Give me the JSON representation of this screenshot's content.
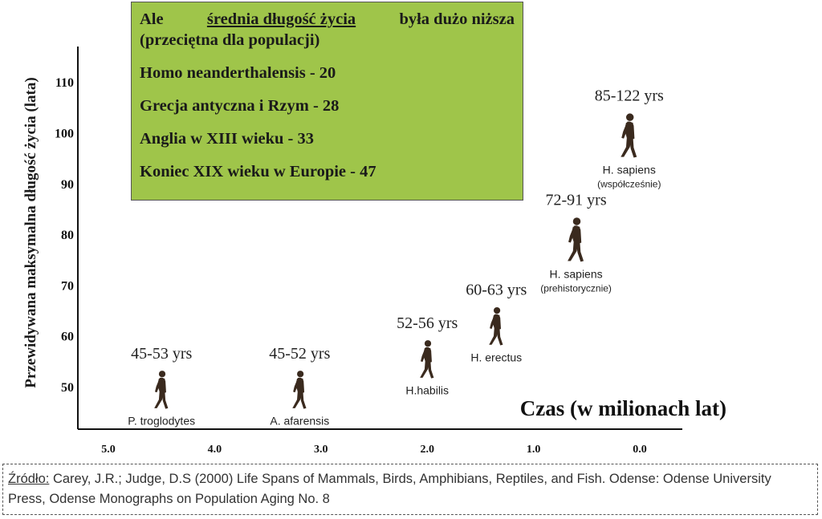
{
  "chart_data": {
    "type": "scatter",
    "ylabel": "Przewidywana maksymalna długość życia (lata)",
    "xlabel": "Czas (w milionach lat)",
    "x_ticks": [
      "5.0",
      "4.0",
      "3.0",
      "2.0",
      "1.0",
      "0.0"
    ],
    "y_ticks": [
      "50",
      "60",
      "70",
      "80",
      "90",
      "100",
      "110"
    ],
    "xlim": [
      5.0,
      0.0
    ],
    "ylim": [
      44,
      116
    ],
    "points": [
      {
        "species": "P. troglodytes",
        "x": 4.5,
        "y": 49,
        "range": "45-53 yrs"
      },
      {
        "species": "A. afarensis",
        "x": 3.2,
        "y": 49,
        "range": "45-52 yrs"
      },
      {
        "species": "H.habilis",
        "x": 2.0,
        "y": 55,
        "range": "52-56 yrs"
      },
      {
        "species": "H. erectus",
        "x": 1.35,
        "y": 61.5,
        "range": "60-63 yrs"
      },
      {
        "species": "H. sapiens",
        "species_note": "(prehistorycznie)",
        "x": 0.6,
        "y": 78.5,
        "range": "72-91 yrs"
      },
      {
        "species": "H. sapiens",
        "species_note": "(współcześnie)",
        "x": 0.1,
        "y": 99,
        "range": "85-122 yrs"
      }
    ]
  },
  "info_box": {
    "line1_pre": "Ale ",
    "line1_underlined": "średnia długość życia",
    "line1_post": " była dużo niższa",
    "line2": "(przeciętna dla populacji)",
    "items": [
      "Homo neanderthalensis - 20",
      "Grecja antyczna i Rzym - 28",
      "Anglia w XIII wieku - 33",
      "Koniec XIX wieku w Europie - 47"
    ]
  },
  "source": {
    "label": "Źródło:",
    "text": " Carey, J.R.; Judge, D.S (2000) Life Spans of Mammals, Birds, Amphibians, Reptiles, and Fish. Odense: Odense University Press, Odense Monographs on Population Aging No. 8"
  },
  "colors": {
    "box_fill": "#9fc54a",
    "figure": "#3a2a1e",
    "axis": "#111111"
  }
}
